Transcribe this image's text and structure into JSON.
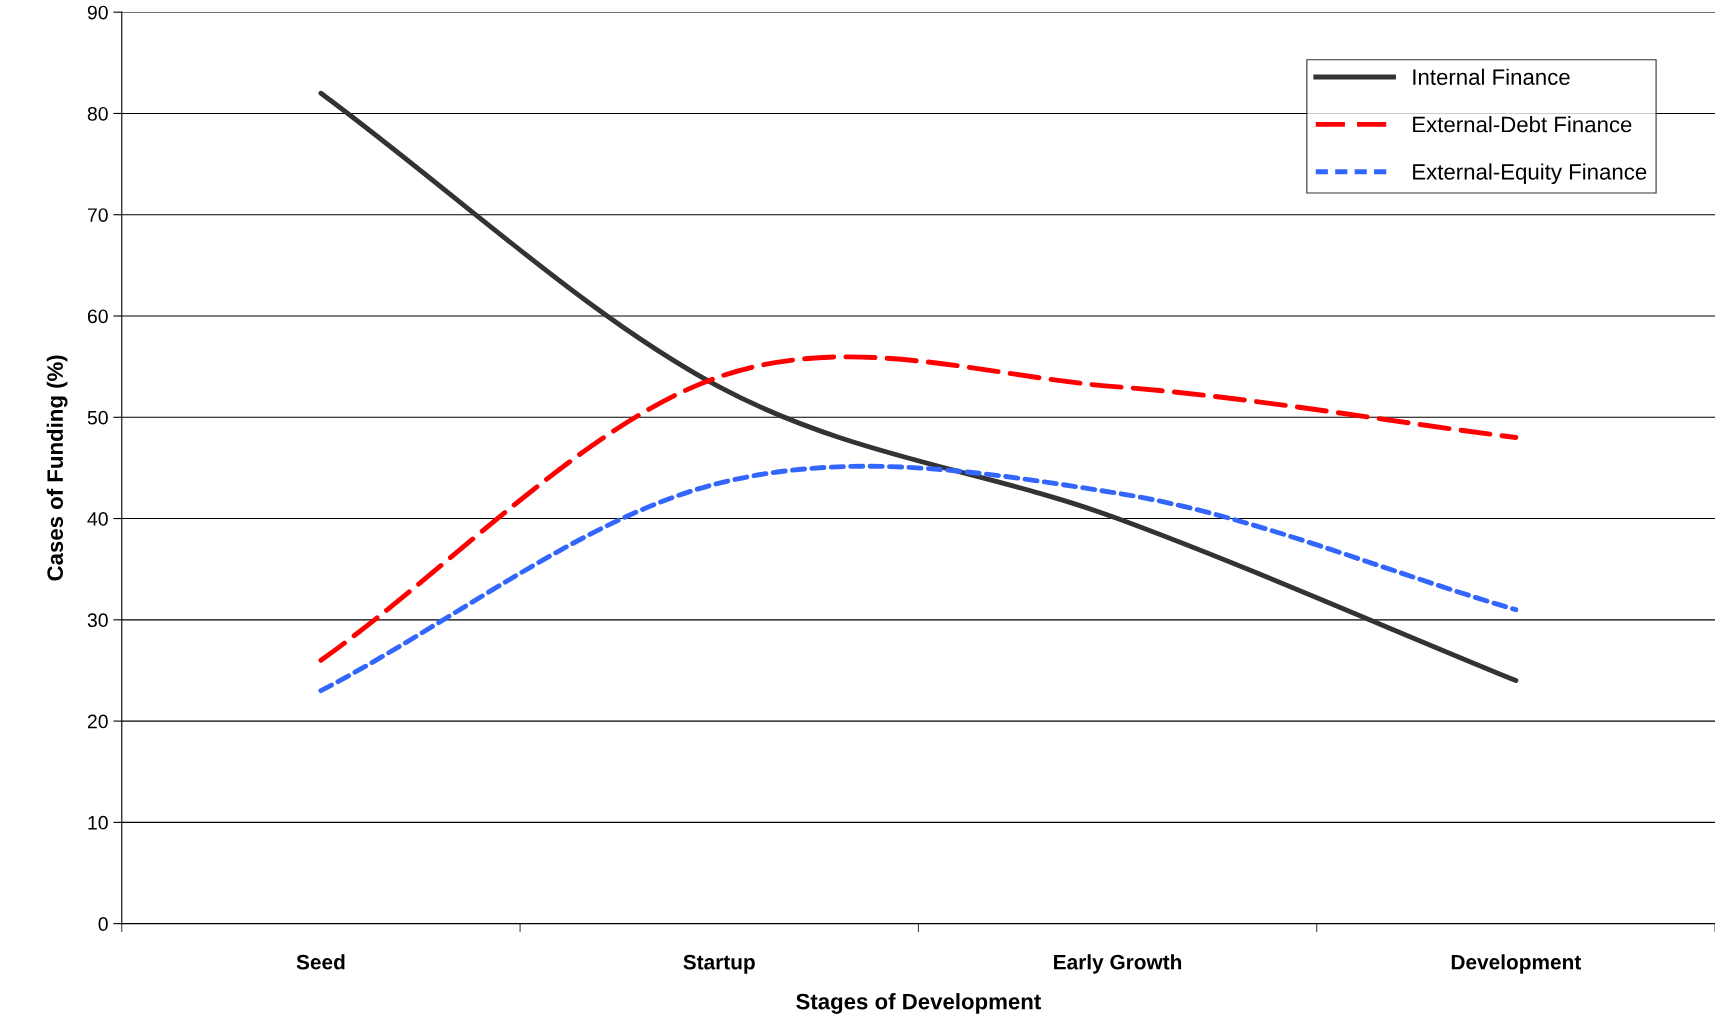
{
  "chart_data": {
    "type": "line",
    "xlabel": "Stages of Development",
    "ylabel": "Cases of Funding (%)",
    "categories": [
      "Seed",
      "Startup",
      "Early Growth",
      "Development"
    ],
    "series": [
      {
        "name": "Internal Finance",
        "color": "#333333",
        "line_style": "solid",
        "values": [
          82,
          53,
          40,
          24
        ]
      },
      {
        "name": "External-Debt Finance",
        "color": "#ff0000",
        "line_style": "dashed",
        "values": [
          26,
          54,
          53,
          48
        ]
      },
      {
        "name": "External-Equity Finance",
        "color": "#3366ff",
        "line_style": "dotted",
        "values": [
          23,
          43.5,
          42.5,
          31
        ]
      }
    ],
    "ylim": [
      0,
      90
    ],
    "yticks": [
      0,
      10,
      20,
      30,
      40,
      50,
      60,
      70,
      80,
      90
    ],
    "grid": "y",
    "legend": "top right",
    "marker": "none"
  }
}
